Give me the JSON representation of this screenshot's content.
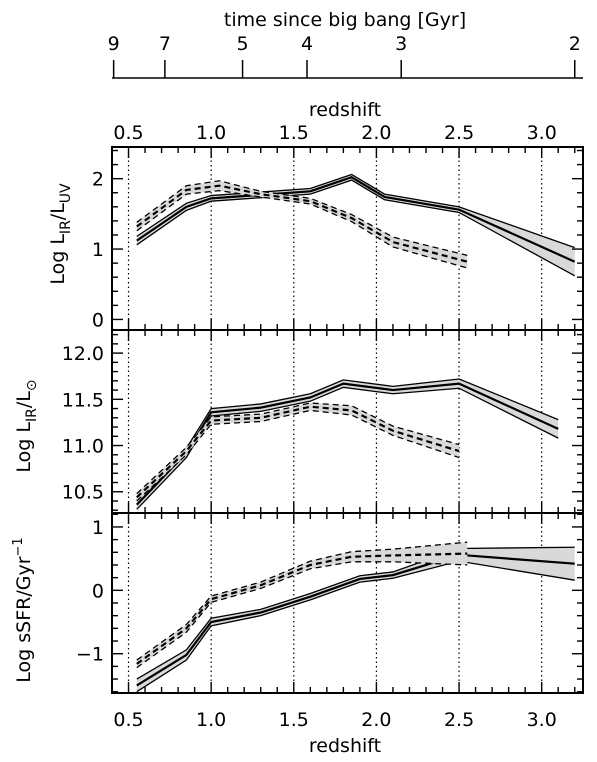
{
  "chart_data": [
    {
      "type": "line",
      "panel": "top",
      "ylabel": "Log L_IR/L_UV",
      "ylim": [
        -0.15,
        2.45
      ],
      "yticks": [
        0,
        1,
        2
      ],
      "xlim": [
        0.4,
        3.25
      ],
      "series": [
        {
          "style": "solid",
          "x": [
            0.55,
            0.85,
            1.0,
            1.3,
            1.6,
            1.85,
            2.05,
            2.5,
            3.2
          ],
          "y": [
            1.12,
            1.6,
            1.72,
            1.77,
            1.82,
            2.02,
            1.74,
            1.56,
            0.82
          ],
          "band": [
            0.06,
            0.05,
            0.04,
            0.04,
            0.04,
            0.04,
            0.04,
            0.04,
            0.2
          ]
        },
        {
          "style": "dashed",
          "x": [
            0.55,
            0.85,
            1.05,
            1.3,
            1.6,
            1.85,
            2.1,
            2.55
          ],
          "y": [
            1.32,
            1.84,
            1.9,
            1.78,
            1.68,
            1.44,
            1.1,
            0.82
          ],
          "band": [
            0.06,
            0.06,
            0.07,
            0.04,
            0.04,
            0.05,
            0.07,
            0.09
          ]
        }
      ]
    },
    {
      "type": "line",
      "panel": "middle",
      "ylabel": "Log L_IR/L_⊙",
      "ylim": [
        10.27,
        12.25
      ],
      "yticks": [
        10.5,
        11.0,
        11.5,
        12.0
      ],
      "ytick_labels": [
        "10.5",
        "11.0",
        "11.5",
        "12.0"
      ],
      "xlim": [
        0.4,
        3.25
      ],
      "series": [
        {
          "style": "solid",
          "x": [
            0.55,
            0.85,
            1.0,
            1.3,
            1.6,
            1.8,
            2.1,
            2.5,
            3.1
          ],
          "y": [
            10.36,
            10.92,
            11.36,
            11.41,
            11.52,
            11.67,
            11.6,
            11.67,
            11.18
          ],
          "band": [
            0.05,
            0.05,
            0.04,
            0.04,
            0.04,
            0.04,
            0.04,
            0.05,
            0.1
          ]
        },
        {
          "style": "dashed",
          "x": [
            0.55,
            0.85,
            1.0,
            1.3,
            1.6,
            1.85,
            2.1,
            2.5
          ],
          "y": [
            10.44,
            10.94,
            11.27,
            11.3,
            11.42,
            11.38,
            11.16,
            10.94
          ],
          "band": [
            0.04,
            0.04,
            0.04,
            0.04,
            0.04,
            0.05,
            0.05,
            0.07
          ]
        }
      ]
    },
    {
      "type": "line",
      "panel": "bottom",
      "ylabel": "Log sSFR/Gyr⁻¹",
      "ylim": [
        -1.62,
        1.22
      ],
      "yticks": [
        -1,
        0,
        1
      ],
      "ytick_labels": [
        "−1",
        "0",
        "1"
      ],
      "xlim": [
        0.4,
        3.25
      ],
      "series": [
        {
          "style": "solid",
          "x": [
            0.55,
            0.85,
            1.0,
            1.3,
            1.6,
            1.9,
            2.1,
            2.5,
            3.2
          ],
          "y": [
            -1.5,
            -1.02,
            -0.5,
            -0.35,
            -0.1,
            0.18,
            0.24,
            0.56,
            0.42
          ],
          "band": [
            0.1,
            0.08,
            0.06,
            0.05,
            0.05,
            0.05,
            0.05,
            0.1,
            0.26
          ]
        },
        {
          "style": "dashed",
          "x": [
            0.55,
            0.85,
            1.0,
            1.3,
            1.6,
            1.85,
            2.1,
            2.55
          ],
          "y": [
            -1.16,
            -0.6,
            -0.14,
            0.08,
            0.4,
            0.53,
            0.55,
            0.58
          ],
          "band": [
            0.06,
            0.06,
            0.05,
            0.05,
            0.06,
            0.08,
            0.1,
            0.18
          ]
        }
      ]
    }
  ],
  "axes": {
    "redshift_ticks": [
      0.5,
      1.0,
      1.5,
      2.0,
      2.5,
      3.0
    ],
    "redshift_tick_labels": [
      "0.5",
      "1.0",
      "1.5",
      "2.0",
      "2.5",
      "3.0"
    ],
    "redshift_label_top": "redshift",
    "redshift_label_bottom": "redshift",
    "time_label": "time since big bang [Gyr]",
    "time_ticks_gyr": [
      9,
      7,
      5,
      4,
      3,
      2
    ],
    "time_tick_labels": [
      "9",
      "7",
      "5",
      "4",
      "3",
      "2"
    ],
    "time_tick_redshift": [
      0.41,
      0.72,
      1.19,
      1.58,
      2.15,
      3.2
    ],
    "vertical_dotted_at": [
      0.5,
      1.0,
      1.5,
      2.0,
      2.5,
      3.0
    ]
  }
}
